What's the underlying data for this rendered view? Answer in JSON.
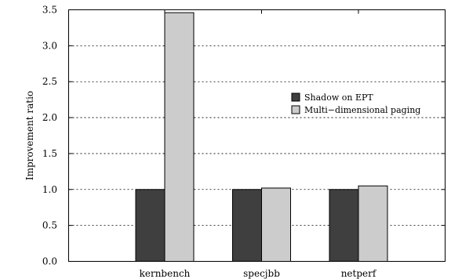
{
  "chart_data": {
    "type": "bar",
    "title": "",
    "xlabel": "",
    "ylabel": "Improvement ratio",
    "categories": [
      "kernbench",
      "specjbb",
      "netperf"
    ],
    "series": [
      {
        "name": "Shadow on EPT",
        "values": [
          1.0,
          1.0,
          1.0
        ],
        "color": "#3f3f3f"
      },
      {
        "name": "Multi−dimensional paging",
        "values": [
          3.46,
          1.02,
          1.05
        ],
        "color": "#cccccc"
      }
    ],
    "ylim": [
      0,
      3.5
    ],
    "yticks": [
      "0.0",
      "0.5",
      "1.0",
      "1.5",
      "2.0",
      "2.5",
      "3.0",
      "3.5"
    ],
    "grid": "horizontal dotted",
    "legend_position": "right"
  }
}
